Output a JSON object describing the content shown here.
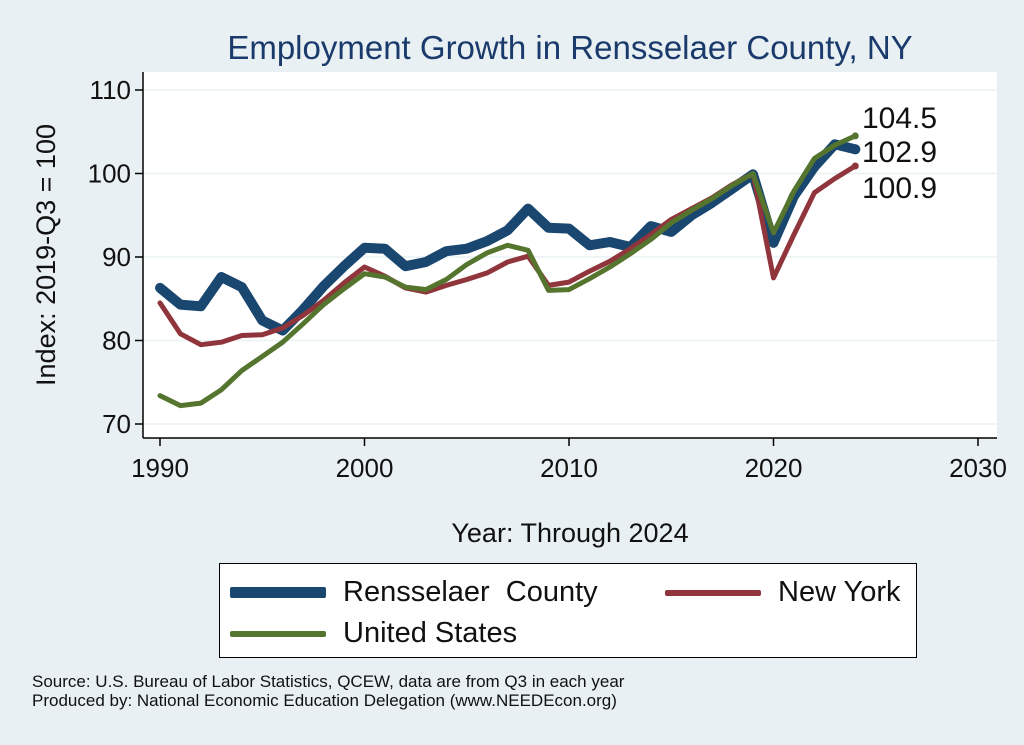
{
  "chart_data": {
    "type": "line",
    "title": "Employment Growth in Rensselaer County, NY",
    "xlabel": "Year: Through 2024",
    "ylabel": "Index: 2019-Q3 = 100",
    "xlim": [
      1990,
      2030
    ],
    "ylim": [
      69,
      111
    ],
    "xticks": [
      1990,
      2000,
      2010,
      2020,
      2030
    ],
    "yticks": [
      70,
      80,
      90,
      100,
      110
    ],
    "grid": true,
    "legend_position": "bottom",
    "x": [
      1990,
      1991,
      1992,
      1993,
      1994,
      1995,
      1996,
      1997,
      1998,
      1999,
      2000,
      2001,
      2002,
      2003,
      2004,
      2005,
      2006,
      2007,
      2008,
      2009,
      2010,
      2011,
      2012,
      2013,
      2014,
      2015,
      2016,
      2017,
      2018,
      2019,
      2020,
      2021,
      2022,
      2023,
      2024
    ],
    "series": [
      {
        "name": "Rensselaer  County",
        "color": "#1a476f",
        "values": [
          86.3,
          84.3,
          84.1,
          87.6,
          86.4,
          82.4,
          81.2,
          83.7,
          86.5,
          88.9,
          91.1,
          91.0,
          88.9,
          89.4,
          90.7,
          91.0,
          91.9,
          93.2,
          95.8,
          93.5,
          93.4,
          91.4,
          91.8,
          91.2,
          93.7,
          93.0,
          95.0,
          96.5,
          98.2,
          99.9,
          91.7,
          97.3,
          100.8,
          103.5,
          102.9
        ]
      },
      {
        "name": "New York",
        "color": "#90353b",
        "values": [
          84.5,
          80.8,
          79.5,
          79.8,
          80.6,
          80.7,
          81.5,
          83.0,
          84.8,
          86.9,
          88.8,
          87.7,
          86.3,
          85.8,
          86.6,
          87.3,
          88.1,
          89.4,
          90.1,
          86.6,
          87.0,
          88.3,
          89.5,
          91.0,
          92.7,
          94.5,
          95.8,
          97.1,
          98.7,
          100.0,
          87.5,
          92.7,
          97.7,
          99.4,
          100.9
        ]
      },
      {
        "name": "United States",
        "color": "#55752f",
        "values": [
          73.4,
          72.2,
          72.5,
          74.1,
          76.4,
          78.1,
          79.8,
          82.0,
          84.3,
          86.2,
          88.0,
          87.6,
          86.4,
          86.1,
          87.3,
          89.1,
          90.5,
          91.4,
          90.8,
          86.0,
          86.1,
          87.4,
          88.8,
          90.4,
          92.1,
          94.1,
          95.6,
          97.0,
          98.6,
          100.0,
          92.9,
          97.9,
          101.8,
          103.4,
          104.5
        ]
      }
    ],
    "end_labels": [
      "104.5",
      "102.9",
      "100.9"
    ],
    "end_label_colors": [
      "#55752f",
      "#1a476f",
      "#90353b"
    ]
  },
  "colors": {
    "background": "#e9f0f3",
    "plot_background": "#ffffff",
    "grid": "#eaf2f3",
    "title": "#1a3a6b"
  },
  "source": {
    "line1": "Source: U.S. Bureau of Labor Statistics, QCEW, data are from Q3 in each year",
    "line2": "Produced by: National Economic Education Delegation (www.NEEDEcon.org)"
  }
}
